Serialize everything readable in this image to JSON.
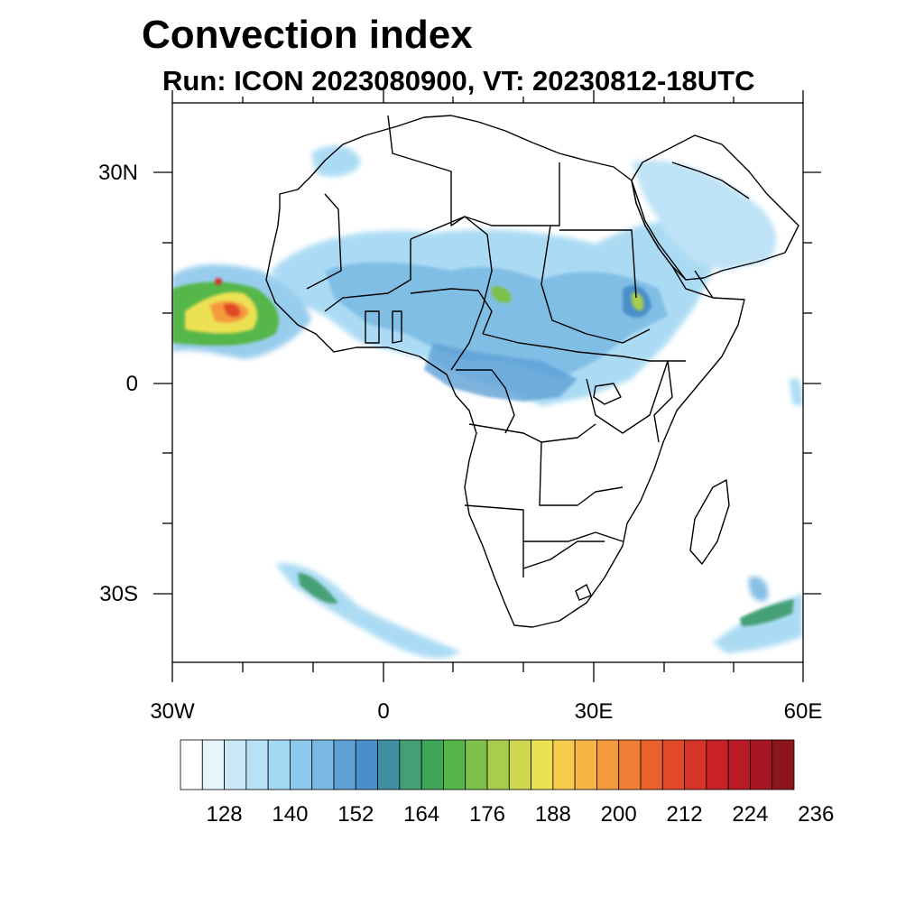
{
  "title": "Convection index",
  "subtitle": "Run: ICON 2023080900,  VT: 20230812-18UTC",
  "axes": {
    "lon_ticks": [
      {
        "value": -30,
        "label": "30W"
      },
      {
        "value": 0,
        "label": "0"
      },
      {
        "value": 30,
        "label": "30E"
      },
      {
        "value": 60,
        "label": "60E"
      }
    ],
    "lat_ticks": [
      {
        "value": 30,
        "label": "30N"
      },
      {
        "value": 0,
        "label": "0"
      },
      {
        "value": -30,
        "label": "30S"
      }
    ],
    "lon_range": [
      -30,
      60
    ],
    "lat_range": [
      -40,
      40
    ]
  },
  "colorbar": {
    "labels": [
      "128",
      "140",
      "152",
      "164",
      "176",
      "188",
      "200",
      "212",
      "224",
      "236"
    ],
    "colors": [
      "#ffffff",
      "#e6f4fc",
      "#cce9f8",
      "#b8e0f6",
      "#a3d8f3",
      "#8ec8ec",
      "#79b8e3",
      "#5fa0d6",
      "#4a8fc9",
      "#3f8fa0",
      "#44a074",
      "#3fa658",
      "#55b64a",
      "#7ec04c",
      "#a8cc4e",
      "#cfd74f",
      "#ece152",
      "#f7cc4e",
      "#f6b646",
      "#f49a3c",
      "#f07e34",
      "#e9612c",
      "#e04a28",
      "#d63428",
      "#c92228",
      "#b81a26",
      "#a51621",
      "#8e141c"
    ]
  }
}
